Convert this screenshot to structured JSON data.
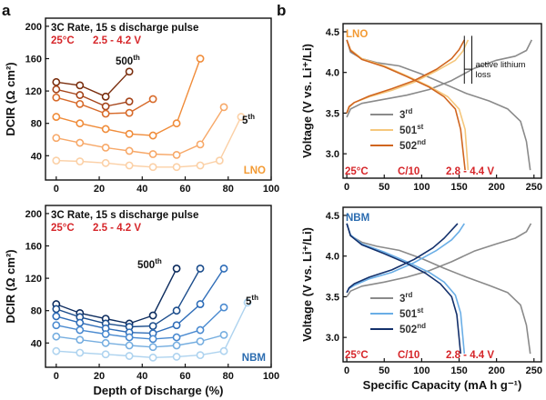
{
  "panel_a_label": "a",
  "panel_b_label": "b",
  "chart_data": [
    {
      "id": "a-top",
      "type": "line",
      "panel": "a",
      "ylabel": "DCIR (Ω cm²)",
      "xlabel": "",
      "xlim": [
        -5,
        100
      ],
      "ylim": [
        10,
        210
      ],
      "xticks": [
        0,
        20,
        40,
        60,
        80,
        100
      ],
      "yticks": [
        40,
        80,
        120,
        160,
        200
      ],
      "notes": {
        "line1": "3C Rate, 15 s discharge pulse",
        "temp": "25°C",
        "range": "2.5 - 4.2 V"
      },
      "material_label": "LNO",
      "material_color": "#f39a33",
      "cycle_high": "500",
      "cycle_high_sup": "th",
      "cycle_low": "5",
      "cycle_low_sup": "th",
      "series": [
        {
          "name": "500th",
          "color": "#7a2e0e",
          "x": [
            0,
            11,
            23,
            34
          ],
          "y": [
            131,
            127,
            113,
            144
          ]
        },
        {
          "name": "",
          "color": "#a5441a",
          "x": [
            0,
            11,
            23,
            34
          ],
          "y": [
            122,
            115,
            101,
            107
          ]
        },
        {
          "name": "",
          "color": "#d76a2a",
          "x": [
            0,
            11,
            23,
            34,
            45
          ],
          "y": [
            112,
            104,
            92,
            93,
            110
          ]
        },
        {
          "name": "",
          "color": "#f08c3a",
          "x": [
            0,
            11,
            23,
            34,
            45,
            56,
            67
          ],
          "y": [
            88,
            80,
            73,
            67,
            65,
            80,
            160
          ]
        },
        {
          "name": "",
          "color": "#f7a868",
          "x": [
            0,
            11,
            23,
            34,
            45,
            56,
            67,
            78
          ],
          "y": [
            62,
            56,
            50,
            46,
            42,
            41,
            54,
            100
          ]
        },
        {
          "name": "5th",
          "color": "#fbd0a6",
          "x": [
            0,
            11,
            23,
            34,
            45,
            56,
            67,
            76,
            86
          ],
          "y": [
            34,
            33,
            31,
            28,
            26,
            26,
            28,
            34,
            88
          ]
        }
      ]
    },
    {
      "id": "a-bottom",
      "type": "line",
      "panel": "a",
      "ylabel": "DCIR (Ω cm²)",
      "xlabel": "Depth of Discharge (%)",
      "xlim": [
        -5,
        100
      ],
      "ylim": [
        10,
        210
      ],
      "xticks": [
        0,
        20,
        40,
        60,
        80,
        100
      ],
      "yticks": [
        40,
        80,
        120,
        160,
        200
      ],
      "notes": {
        "line1": "3C Rate, 15 s discharge pulse",
        "temp": "25°C",
        "range": "2.5 - 4.2 V"
      },
      "material_label": "NBM",
      "material_color": "#2b6cb0",
      "cycle_high": "500",
      "cycle_high_sup": "th",
      "cycle_low": "5",
      "cycle_low_sup": "th",
      "series": [
        {
          "name": "500th",
          "color": "#0d2c5e",
          "x": [
            0,
            11,
            23,
            34,
            45,
            56
          ],
          "y": [
            88,
            77,
            70,
            64,
            74,
            132
          ]
        },
        {
          "name": "",
          "color": "#1c4d8c",
          "x": [
            0,
            11,
            23,
            34,
            45,
            56,
            67
          ],
          "y": [
            82,
            72,
            64,
            60,
            61,
            80,
            132
          ]
        },
        {
          "name": "",
          "color": "#2f6db8",
          "x": [
            0,
            11,
            23,
            34,
            45,
            56,
            67,
            78
          ],
          "y": [
            73,
            65,
            58,
            53,
            52,
            62,
            88,
            132
          ]
        },
        {
          "name": "",
          "color": "#4a8ad0",
          "x": [
            0,
            11,
            23,
            34,
            45,
            56,
            67,
            78
          ],
          "y": [
            62,
            56,
            51,
            47,
            45,
            47,
            56,
            84
          ]
        },
        {
          "name": "",
          "color": "#76aee0",
          "x": [
            0,
            11,
            23,
            34,
            45,
            56,
            67,
            78
          ],
          "y": [
            48,
            44,
            40,
            37,
            35,
            37,
            42,
            50
          ]
        },
        {
          "name": "5th",
          "color": "#aed3ef",
          "x": [
            0,
            11,
            23,
            34,
            45,
            56,
            67,
            78,
            89
          ],
          "y": [
            30,
            28,
            26,
            24,
            22,
            23,
            25,
            30,
            90
          ]
        }
      ]
    },
    {
      "id": "b-top",
      "type": "line",
      "panel": "b",
      "ylabel": "Voltage (V vs. Li⁺/Li)",
      "xlabel": "",
      "xlim": [
        -5,
        260
      ],
      "ylim": [
        2.7,
        4.6
      ],
      "xticks": [
        0,
        50,
        100,
        150,
        200,
        250
      ],
      "yticks": [
        3.0,
        3.5,
        4.0,
        4.5
      ],
      "material_label": "LNO",
      "material_color": "#f39a33",
      "footer": {
        "temp": "25°C",
        "rate": "C/10",
        "range": "2.8 - 4.4 V"
      },
      "annotation": {
        "line1": "active lithium",
        "line2": "loss",
        "x_from": 157,
        "x_to": 167,
        "y": 4.04
      },
      "legend": [
        {
          "label": "3",
          "sup": "rd",
          "color": "#8a8a8a"
        },
        {
          "label": "501",
          "sup": "st",
          "color": "#f5c77c"
        },
        {
          "label": "502",
          "sup": "nd",
          "color": "#d0651f"
        }
      ],
      "series": [
        {
          "name": "3rd charge",
          "color": "#8a8a8a",
          "x": [
            0,
            5,
            20,
            50,
            80,
            110,
            140,
            170,
            200,
            225,
            240,
            247
          ],
          "y": [
            3.45,
            3.55,
            3.62,
            3.67,
            3.72,
            3.79,
            3.9,
            4.05,
            4.15,
            4.2,
            4.27,
            4.4
          ]
        },
        {
          "name": "3rd discharge",
          "color": "#8a8a8a",
          "x": [
            0,
            5,
            20,
            40,
            70,
            100,
            130,
            160,
            190,
            215,
            232,
            240,
            245
          ],
          "y": [
            4.4,
            4.25,
            4.17,
            4.12,
            4.08,
            3.98,
            3.86,
            3.74,
            3.65,
            3.55,
            3.4,
            3.15,
            2.8
          ]
        },
        {
          "name": "501st charge",
          "color": "#f5c77c",
          "x": [
            0,
            3,
            10,
            30,
            60,
            90,
            120,
            145,
            155,
            162
          ],
          "y": [
            3.5,
            3.57,
            3.63,
            3.7,
            3.78,
            3.88,
            4.02,
            4.15,
            4.26,
            4.4
          ]
        },
        {
          "name": "501st discharge",
          "color": "#f5c77c",
          "x": [
            0,
            5,
            20,
            50,
            80,
            110,
            135,
            150,
            158,
            162
          ],
          "y": [
            4.4,
            4.28,
            4.17,
            4.08,
            3.96,
            3.83,
            3.7,
            3.55,
            3.3,
            2.8
          ]
        },
        {
          "name": "502nd charge",
          "color": "#d0651f",
          "x": [
            0,
            3,
            10,
            30,
            60,
            90,
            120,
            140,
            150,
            157
          ],
          "y": [
            3.5,
            3.58,
            3.63,
            3.71,
            3.8,
            3.9,
            4.04,
            4.17,
            4.28,
            4.4
          ]
        },
        {
          "name": "502nd discharge",
          "color": "#d0651f",
          "x": [
            0,
            5,
            20,
            50,
            80,
            110,
            130,
            145,
            152,
            158
          ],
          "y": [
            4.4,
            4.27,
            4.16,
            4.07,
            3.95,
            3.82,
            3.7,
            3.55,
            3.3,
            2.8
          ]
        }
      ]
    },
    {
      "id": "b-bottom",
      "type": "line",
      "panel": "b",
      "ylabel": "Voltage (V vs. Li⁺/Li)",
      "xlabel": "Specific Capacity (mA h g⁻¹)",
      "xlim": [
        -5,
        260
      ],
      "ylim": [
        2.7,
        4.6
      ],
      "xticks": [
        0,
        50,
        100,
        150,
        200,
        250
      ],
      "yticks": [
        3.0,
        3.5,
        4.0,
        4.5
      ],
      "material_label": "NBM",
      "material_color": "#2b6cb0",
      "footer": {
        "temp": "25°C",
        "rate": "C/10",
        "range": "2.8 - 4.4 V"
      },
      "legend": [
        {
          "label": "3",
          "sup": "rd",
          "color": "#8a8a8a"
        },
        {
          "label": "501",
          "sup": "st",
          "color": "#6aaee6"
        },
        {
          "label": "502",
          "sup": "nd",
          "color": "#13306b"
        }
      ],
      "series": [
        {
          "name": "3rd charge",
          "color": "#8a8a8a",
          "x": [
            0,
            5,
            20,
            50,
            80,
            110,
            140,
            170,
            200,
            225,
            240,
            246
          ],
          "y": [
            3.5,
            3.57,
            3.63,
            3.68,
            3.74,
            3.82,
            3.93,
            4.06,
            4.15,
            4.22,
            4.3,
            4.4
          ]
        },
        {
          "name": "3rd discharge",
          "color": "#8a8a8a",
          "x": [
            0,
            5,
            20,
            40,
            70,
            100,
            130,
            160,
            190,
            215,
            232,
            240,
            245
          ],
          "y": [
            4.4,
            4.25,
            4.17,
            4.12,
            4.07,
            3.97,
            3.85,
            3.74,
            3.64,
            3.55,
            3.4,
            3.15,
            2.8
          ]
        },
        {
          "name": "501st charge",
          "color": "#6aaee6",
          "x": [
            0,
            3,
            10,
            30,
            60,
            90,
            120,
            140,
            150,
            157
          ],
          "y": [
            3.55,
            3.6,
            3.64,
            3.72,
            3.8,
            3.92,
            4.07,
            4.2,
            4.3,
            4.4
          ]
        },
        {
          "name": "501st discharge",
          "color": "#6aaee6",
          "x": [
            0,
            5,
            20,
            50,
            80,
            110,
            130,
            145,
            152,
            157
          ],
          "y": [
            4.4,
            4.26,
            4.15,
            4.05,
            3.93,
            3.8,
            3.68,
            3.52,
            3.3,
            2.8
          ]
        },
        {
          "name": "502nd charge",
          "color": "#13306b",
          "x": [
            0,
            3,
            10,
            30,
            60,
            90,
            115,
            130,
            140,
            148
          ],
          "y": [
            3.55,
            3.61,
            3.66,
            3.74,
            3.83,
            3.96,
            4.1,
            4.22,
            4.32,
            4.4
          ]
        },
        {
          "name": "502nd discharge",
          "color": "#13306b",
          "x": [
            0,
            5,
            20,
            50,
            80,
            105,
            125,
            140,
            147,
            152
          ],
          "y": [
            4.4,
            4.25,
            4.14,
            4.03,
            3.91,
            3.79,
            3.66,
            3.5,
            3.28,
            2.8
          ]
        }
      ]
    }
  ]
}
